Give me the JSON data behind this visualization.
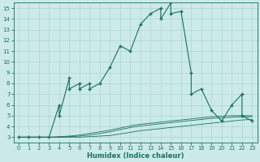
{
  "xlabel": "Humidex (Indice chaleur)",
  "xlim": [
    -0.5,
    23.5
  ],
  "ylim": [
    2.5,
    15.5
  ],
  "yticks": [
    3,
    4,
    5,
    6,
    7,
    8,
    9,
    10,
    11,
    12,
    13,
    14,
    15
  ],
  "xticks": [
    0,
    1,
    2,
    3,
    4,
    5,
    6,
    7,
    8,
    9,
    10,
    11,
    12,
    13,
    14,
    15,
    16,
    17,
    18,
    19,
    20,
    21,
    22,
    23
  ],
  "line_color": "#1a7060",
  "bg_color": "#cceae8",
  "grid_color": "#a8d8d4",
  "main_curve_x": [
    0,
    1,
    2,
    3,
    4,
    4,
    5,
    5,
    6,
    6,
    7,
    7,
    8,
    9,
    10,
    11,
    12,
    13,
    14,
    14,
    15,
    15,
    16,
    17,
    17,
    18,
    19,
    20,
    21,
    22,
    22,
    23
  ],
  "main_curve_y": [
    3,
    3,
    3,
    3,
    6,
    5,
    8.5,
    7.5,
    8.0,
    7.5,
    8.0,
    7.5,
    8.0,
    9.5,
    11.5,
    11.0,
    13.5,
    14.5,
    15.0,
    14.0,
    15.5,
    14.5,
    14.7,
    9.0,
    7.0,
    7.5,
    5.5,
    4.5,
    6.0,
    7.0,
    5.0,
    4.5
  ],
  "flat_curve1_x": [
    0,
    1,
    2,
    3,
    4,
    5,
    6,
    7,
    8,
    9,
    10,
    11,
    12,
    13,
    14,
    15,
    16,
    17,
    18,
    19,
    20,
    21,
    22,
    23
  ],
  "flat_curve1_y": [
    3.0,
    3.0,
    3.0,
    3.0,
    3.0,
    3.0,
    3.0,
    3.05,
    3.1,
    3.15,
    3.3,
    3.45,
    3.6,
    3.7,
    3.8,
    3.9,
    4.0,
    4.1,
    4.2,
    4.3,
    4.4,
    4.5,
    4.6,
    4.65
  ],
  "flat_curve2_x": [
    0,
    1,
    2,
    3,
    4,
    5,
    6,
    7,
    8,
    9,
    10,
    11,
    12,
    13,
    14,
    15,
    16,
    17,
    18,
    19,
    20,
    21,
    22,
    23
  ],
  "flat_curve2_y": [
    3.0,
    3.0,
    3.0,
    3.0,
    3.0,
    3.05,
    3.1,
    3.2,
    3.35,
    3.5,
    3.7,
    3.9,
    4.05,
    4.15,
    4.25,
    4.35,
    4.45,
    4.55,
    4.65,
    4.75,
    4.8,
    4.85,
    4.9,
    4.9
  ],
  "flat_curve3_x": [
    0,
    1,
    2,
    3,
    4,
    5,
    6,
    7,
    8,
    9,
    10,
    11,
    12,
    13,
    14,
    15,
    16,
    17,
    18,
    19,
    20,
    21,
    22,
    23
  ],
  "flat_curve3_y": [
    3.0,
    3.0,
    3.0,
    3.0,
    3.05,
    3.1,
    3.2,
    3.35,
    3.5,
    3.65,
    3.85,
    4.05,
    4.2,
    4.3,
    4.4,
    4.5,
    4.6,
    4.7,
    4.8,
    4.9,
    4.95,
    5.0,
    5.0,
    5.0
  ]
}
